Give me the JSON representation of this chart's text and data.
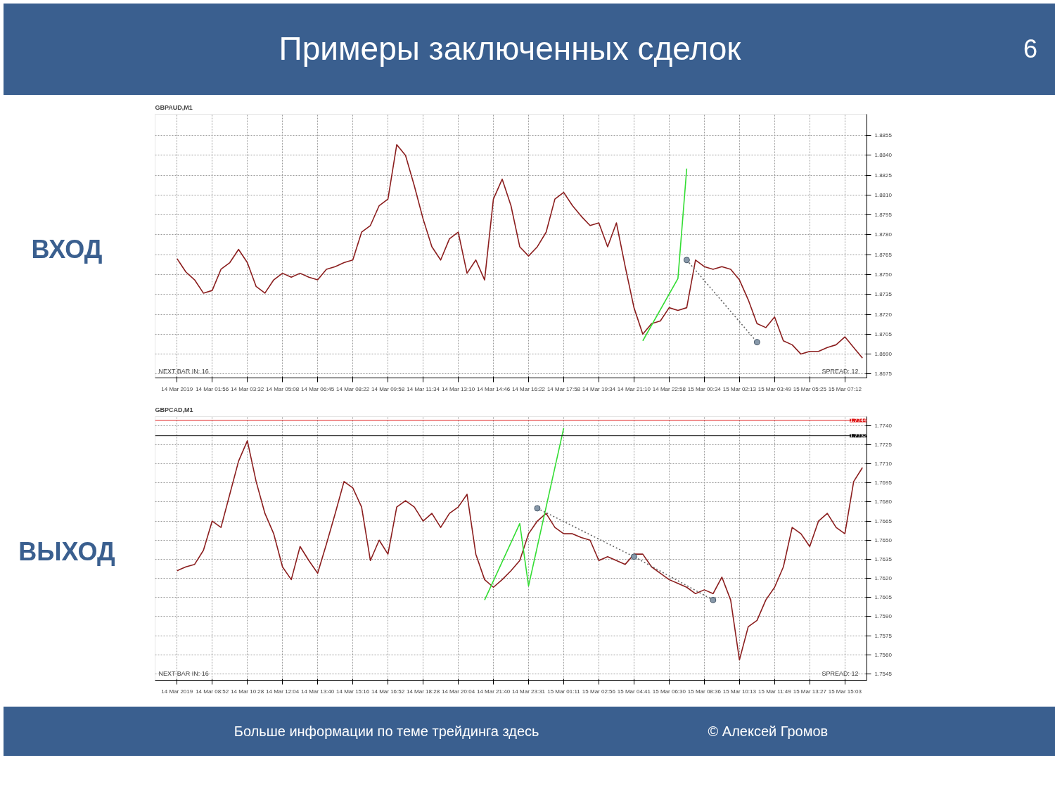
{
  "chart_data": [
    {
      "type": "line",
      "title": "Примеры заключенных сделок",
      "subtitle": "GBPAUD,M1",
      "ylabel": "ВХОД",
      "grid": true,
      "categories": [
        "14 Mar 2019",
        null,
        null,
        null,
        "14 Mar 01:56",
        null,
        null,
        null,
        "14 Mar 03:32",
        null,
        null,
        null,
        "14 Mar 05:08",
        null,
        null,
        null,
        "14 Mar 06:45",
        null,
        null,
        null,
        "14 Mar 08:22",
        null,
        null,
        null,
        "14 Mar 09:58",
        null,
        null,
        null,
        "14 Mar 11:34",
        null,
        null,
        null,
        "14 Mar 13:10",
        null,
        null,
        null,
        "14 Mar 14:46",
        null,
        null,
        null,
        "14 Mar 16:22",
        null,
        null,
        null,
        "14 Mar 17:58",
        null,
        null,
        null,
        "14 Mar 19:34",
        null,
        null,
        null,
        "14 Mar 21:10",
        null,
        null,
        null,
        "14 Mar 22:58",
        null,
        null,
        null,
        "15 Mar 00:34",
        null,
        null,
        null,
        "15 Mar 02:13",
        null,
        null,
        null,
        "15 Mar 03:49",
        null,
        null,
        null,
        "15 Mar 05:25",
        null,
        null,
        null,
        "15 Mar 07:12",
        null,
        null
      ],
      "ylim": [
        1.8672,
        1.8871
      ],
      "yticks": [
        {
          "value": 1.8675,
          "label": "1.8675"
        },
        {
          "value": 1.869,
          "label": "1.8690"
        },
        {
          "value": 1.8705,
          "label": "1.8705"
        },
        {
          "value": 1.872,
          "label": "1.8720"
        },
        {
          "value": 1.8735,
          "label": "1.8735"
        },
        {
          "value": 1.875,
          "label": "1.8750"
        },
        {
          "value": 1.8765,
          "label": "1.8765"
        },
        {
          "value": 1.878,
          "label": "1.8780"
        },
        {
          "value": 1.8795,
          "label": "1.8795"
        },
        {
          "value": 1.881,
          "label": "1.8810"
        },
        {
          "value": 1.8825,
          "label": "1.8825"
        },
        {
          "value": 1.884,
          "label": "1.8840"
        },
        {
          "value": 1.8855,
          "label": "1.8855"
        }
      ],
      "series": [
        {
          "color": "#8b1e1e",
          "line_style": "solid",
          "values": [
            1.8762,
            1.8752,
            1.8746,
            1.8736,
            1.8738,
            1.8754,
            1.8759,
            1.8769,
            1.8759,
            1.8741,
            1.8736,
            1.8746,
            1.8751,
            1.8748,
            1.8751,
            1.8748,
            1.8746,
            1.8754,
            1.8756,
            1.8759,
            1.8761,
            1.8782,
            1.8787,
            1.8802,
            1.8807,
            1.8848,
            1.884,
            1.8817,
            1.8792,
            1.8771,
            1.8761,
            1.8777,
            1.8782,
            1.8751,
            1.8761,
            1.8746,
            1.8807,
            1.8822,
            1.8802,
            1.8771,
            1.8764,
            1.8771,
            1.8782,
            1.8807,
            1.8812,
            1.8802,
            1.8794,
            1.8787,
            1.8789,
            1.8771,
            1.8789,
            1.8756,
            1.8725,
            1.8705,
            1.8713,
            1.8715,
            1.8725,
            1.8723,
            1.8725,
            1.8761,
            1.8756,
            1.8754,
            1.8756,
            1.8754,
            1.8746,
            1.8731,
            1.8713,
            1.871,
            1.8718,
            1.87,
            1.8697,
            1.869,
            1.8692,
            1.8692,
            1.8695,
            1.8697,
            1.8703,
            1.8695,
            1.8687
          ]
        },
        {
          "color": "#33dd33",
          "line_style": "solid",
          "values": [
            null,
            null,
            null,
            null,
            null,
            null,
            null,
            null,
            null,
            null,
            null,
            null,
            null,
            null,
            null,
            null,
            null,
            null,
            null,
            null,
            null,
            null,
            null,
            null,
            null,
            null,
            null,
            null,
            null,
            null,
            null,
            null,
            null,
            null,
            null,
            null,
            null,
            null,
            null,
            null,
            null,
            null,
            null,
            null,
            null,
            null,
            null,
            null,
            null,
            null,
            null,
            null,
            null,
            1.87,
            null,
            null,
            null,
            1.8747,
            1.883,
            null,
            null,
            null,
            null,
            null,
            null,
            null,
            null,
            null,
            null,
            null,
            null,
            null,
            null,
            null,
            null,
            null,
            null,
            null,
            null
          ]
        },
        {
          "color": "#666666",
          "line_style": "dotted",
          "marker": "circle",
          "values": [
            null,
            null,
            null,
            null,
            null,
            null,
            null,
            null,
            null,
            null,
            null,
            null,
            null,
            null,
            null,
            null,
            null,
            null,
            null,
            null,
            null,
            null,
            null,
            null,
            null,
            null,
            null,
            null,
            null,
            null,
            null,
            null,
            null,
            null,
            null,
            null,
            null,
            null,
            null,
            null,
            null,
            null,
            null,
            null,
            null,
            null,
            null,
            null,
            null,
            null,
            null,
            null,
            null,
            null,
            null,
            null,
            null,
            null,
            1.8761,
            null,
            null,
            null,
            null,
            null,
            null,
            null,
            1.8699,
            null,
            null,
            null,
            null,
            null,
            null,
            null,
            null,
            null,
            null,
            null,
            null
          ]
        }
      ],
      "annotations": [
        "NEXT BAR IN: 16",
        "SPREAD: 12",
        "6"
      ]
    },
    {
      "type": "line",
      "subtitle": "GBPCAD,M1",
      "ylabel": "ВЫХОД",
      "grid": true,
      "categories": [
        "14 Mar 2019",
        null,
        null,
        null,
        "14 Mar 08:52",
        null,
        null,
        null,
        "14 Mar 10:28",
        null,
        null,
        null,
        "14 Mar 12:04",
        null,
        null,
        null,
        "14 Mar 13:40",
        null,
        null,
        null,
        "14 Mar 15:16",
        null,
        null,
        null,
        "14 Mar 16:52",
        null,
        null,
        null,
        "14 Mar 18:28",
        null,
        null,
        null,
        "14 Mar 20:04",
        null,
        null,
        null,
        "14 Mar 21:40",
        null,
        null,
        null,
        "14 Mar 23:31",
        null,
        null,
        null,
        "15 Mar 01:11",
        null,
        null,
        null,
        "15 Mar 02:56",
        null,
        null,
        null,
        "15 Mar 04:41",
        null,
        null,
        null,
        "15 Mar 06:30",
        null,
        null,
        null,
        "15 Mar 08:36",
        null,
        null,
        null,
        "15 Mar 10:13",
        null,
        null,
        null,
        "15 Mar 11:49",
        null,
        null,
        null,
        "15 Mar 13:27",
        null,
        null,
        null,
        "15 Mar 15:03",
        null,
        null
      ],
      "ylim": [
        1.754,
        1.7747
      ],
      "yticks": [
        {
          "value": 1.7545,
          "label": "1.7545"
        },
        {
          "value": 1.756,
          "label": "1.7560"
        },
        {
          "value": 1.7575,
          "label": "1.7575"
        },
        {
          "value": 1.759,
          "label": "1.7590"
        },
        {
          "value": 1.7605,
          "label": "1.7605"
        },
        {
          "value": 1.762,
          "label": "1.7620"
        },
        {
          "value": 1.7635,
          "label": "1.7635"
        },
        {
          "value": 1.765,
          "label": "1.7650"
        },
        {
          "value": 1.7665,
          "label": "1.7665"
        },
        {
          "value": 1.768,
          "label": "1.7680"
        },
        {
          "value": 1.7695,
          "label": "1.7695"
        },
        {
          "value": 1.771,
          "label": "1.7710"
        },
        {
          "value": 1.7725,
          "label": "1.7725"
        },
        {
          "value": 1.774,
          "label": "1.7740"
        }
      ],
      "series": [
        {
          "color": "#8b1e1e",
          "line_style": "solid",
          "values": [
            1.7626,
            1.7629,
            1.7631,
            1.7642,
            1.7665,
            1.766,
            1.7686,
            1.7712,
            1.7728,
            1.7696,
            1.7671,
            1.7655,
            1.7629,
            1.7619,
            1.7645,
            1.7634,
            1.7624,
            1.7647,
            1.7671,
            1.7696,
            1.7691,
            1.7676,
            1.7634,
            1.765,
            1.7639,
            1.7676,
            1.7681,
            1.7676,
            1.7665,
            1.7671,
            1.766,
            1.7671,
            1.7676,
            1.7686,
            1.7639,
            1.7619,
            1.7613,
            1.7619,
            1.7626,
            1.7634,
            1.7655,
            1.7665,
            1.7671,
            1.766,
            1.7655,
            1.7655,
            1.7652,
            1.765,
            1.7634,
            1.7637,
            1.7634,
            1.7631,
            1.7639,
            1.7639,
            1.7629,
            1.7624,
            1.7619,
            1.7616,
            1.7613,
            1.7608,
            1.7611,
            1.7608,
            1.7621,
            1.7603,
            1.7556,
            1.7582,
            1.7587,
            1.7603,
            1.7613,
            1.7629,
            1.766,
            1.7655,
            1.7645,
            1.7665,
            1.7671,
            1.766,
            1.7655,
            1.7696,
            1.7707
          ]
        },
        {
          "color": "#33dd33",
          "line_style": "solid",
          "values": [
            null,
            null,
            null,
            null,
            null,
            null,
            null,
            null,
            null,
            null,
            null,
            null,
            null,
            null,
            null,
            null,
            null,
            null,
            null,
            null,
            null,
            null,
            null,
            null,
            null,
            null,
            null,
            null,
            null,
            null,
            null,
            null,
            null,
            null,
            null,
            1.7603,
            null,
            null,
            null,
            1.7663,
            1.7614,
            null,
            null,
            null,
            1.7738,
            null,
            null,
            null,
            null,
            null,
            null,
            null,
            null,
            null,
            null,
            null,
            null,
            null,
            null,
            null,
            null,
            null,
            null,
            null,
            null,
            null,
            null,
            null,
            null,
            null,
            null,
            null,
            null,
            null,
            null,
            null,
            null,
            null,
            null
          ]
        },
        {
          "color": "#666666",
          "line_style": "dotted",
          "marker": "circle",
          "values": [
            null,
            null,
            null,
            null,
            null,
            null,
            null,
            null,
            null,
            null,
            null,
            null,
            null,
            null,
            null,
            null,
            null,
            null,
            null,
            null,
            null,
            null,
            null,
            null,
            null,
            null,
            null,
            null,
            null,
            null,
            null,
            null,
            null,
            null,
            null,
            null,
            null,
            null,
            null,
            null,
            null,
            1.7675,
            null,
            null,
            null,
            null,
            null,
            null,
            null,
            null,
            null,
            null,
            1.7637,
            null,
            null,
            null,
            null,
            null,
            null,
            null,
            null,
            1.7603,
            null,
            null,
            null,
            null,
            null,
            null,
            null,
            null,
            null,
            null,
            null,
            null,
            null,
            null,
            null,
            null,
            null
          ]
        }
      ],
      "ref_lines": [
        {
          "axis": "y",
          "value": 1.7744,
          "label": "1.7744",
          "color": "#e02020"
        },
        {
          "axis": "y",
          "value": 1.7732,
          "label": "1.7732",
          "color": "#111111"
        }
      ],
      "annotations": [
        "NEXT BAR IN: 16",
        "SPREAD: 12",
        "Больше информации по теме трейдинга здесь",
        "© Алексей Громов"
      ]
    }
  ]
}
